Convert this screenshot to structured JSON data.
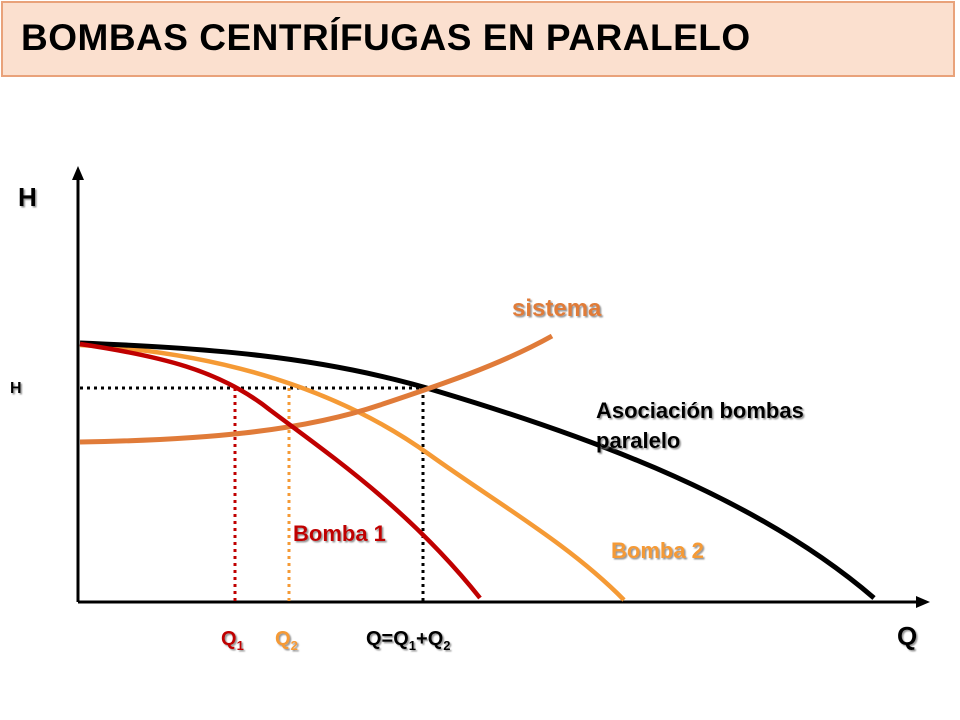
{
  "title": "BOMBAS CENTRÍFUGAS EN PARALELO",
  "axes": {
    "y_label": "H",
    "x_label": "Q",
    "h_mark": "H"
  },
  "curves": {
    "sistema": {
      "label": "sistema",
      "color": "#e07b39"
    },
    "asociacion": {
      "label_line1": "Asociación bombas",
      "label_line2": "paralelo",
      "color": "#000000"
    },
    "bomba1": {
      "label": "Bomba 1",
      "color": "#c00000"
    },
    "bomba2": {
      "label": "Bomba 2",
      "color": "#f59a35"
    }
  },
  "flow_marks": {
    "q1": {
      "base": "Q",
      "sub": "1",
      "color": "#c00000"
    },
    "q2": {
      "base": "Q",
      "sub": "2",
      "color": "#f59a35"
    },
    "qsum": {
      "prefix": "Q=Q",
      "sub1": "1",
      "mid": "+Q",
      "sub2": "2",
      "color": "#000000"
    }
  }
}
